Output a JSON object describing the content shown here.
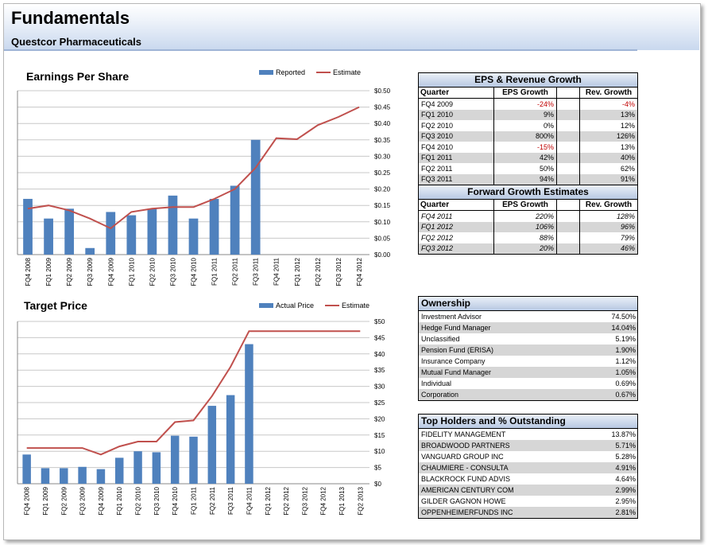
{
  "header": {
    "title": "Fundamentals",
    "company": "Questcor Pharmaceuticals"
  },
  "colors": {
    "bar": "#4f81bd",
    "line": "#c0504d",
    "negative": "#c00000"
  },
  "chart_data": [
    {
      "type": "bar",
      "title": "Earnings Per Share",
      "categories": [
        "FQ4 2008",
        "FQ1 2009",
        "FQ2 2009",
        "FQ3 2009",
        "FQ4 2009",
        "FQ1 2010",
        "FQ2 2010",
        "FQ3 2010",
        "FQ4 2010",
        "FQ1 2011",
        "FQ2 2011",
        "FQ3 2011",
        "FQ4 2011",
        "FQ1 2012",
        "FQ2 2012",
        "FQ3 2012",
        "FQ4 2012"
      ],
      "series": [
        {
          "name": "Reported",
          "kind": "bar",
          "values": [
            0.17,
            0.11,
            0.14,
            0.02,
            0.13,
            0.12,
            0.14,
            0.18,
            0.11,
            0.17,
            0.21,
            0.35,
            null,
            null,
            null,
            null,
            null
          ]
        },
        {
          "name": "Estimate",
          "kind": "line",
          "values": [
            0.14,
            0.15,
            0.135,
            0.11,
            0.08,
            0.13,
            0.14,
            0.145,
            0.145,
            0.17,
            0.2,
            0.265,
            0.355,
            0.352,
            0.395,
            0.42,
            0.45
          ]
        }
      ],
      "yticks": [
        "$0.00",
        "$0.05",
        "$0.10",
        "$0.15",
        "$0.20",
        "$0.25",
        "$0.30",
        "$0.35",
        "$0.40",
        "$0.45",
        "$0.50"
      ],
      "ylim": [
        0,
        0.5
      ],
      "y_axis_side": "right",
      "grid": true,
      "legend_placement": "top-right"
    },
    {
      "type": "bar",
      "title": "Target Price",
      "categories": [
        "FQ4 2008",
        "FQ1 2009",
        "FQ2 2009",
        "FQ3 2009",
        "FQ4 2009",
        "FQ1 2010",
        "FQ2 2010",
        "FQ3 2010",
        "FQ4 2010",
        "FQ1 2011",
        "FQ2 2011",
        "FQ3 2011",
        "FQ4 2011",
        "FQ1 2012",
        "FQ2 2012",
        "FQ3 2012",
        "FQ4 2012",
        "FQ1 2013",
        "FQ2 2013"
      ],
      "series": [
        {
          "name": "Actual Price",
          "kind": "bar",
          "values": [
            9,
            4.8,
            4.8,
            5.2,
            4.5,
            8,
            10,
            9.7,
            14.8,
            14.5,
            24,
            27.3,
            43,
            null,
            null,
            null,
            null,
            null,
            null
          ]
        },
        {
          "name": "Estimate",
          "kind": "line",
          "values": [
            11,
            11,
            11,
            11,
            9,
            11.5,
            13,
            13,
            19,
            19.5,
            27,
            36,
            47,
            47,
            47,
            47,
            47,
            47,
            47
          ]
        }
      ],
      "yticks": [
        "$0",
        "$5",
        "$10",
        "$15",
        "$20",
        "$25",
        "$30",
        "$35",
        "$40",
        "$45",
        "$50"
      ],
      "ylim": [
        0,
        50
      ],
      "y_axis_side": "right",
      "grid": true,
      "legend_placement": "top-right"
    }
  ],
  "eps_table": {
    "title": "EPS & Revenue Growth",
    "headers": [
      "Quarter",
      "EPS Growth",
      "Rev. Growth"
    ],
    "rows": [
      {
        "q": "FQ4 2009",
        "eps": "-24%",
        "rev": "-4%",
        "eps_neg": true,
        "rev_neg": true
      },
      {
        "q": "FQ1 2010",
        "eps": "9%",
        "rev": "13%"
      },
      {
        "q": "FQ2 2010",
        "eps": "0%",
        "rev": "12%"
      },
      {
        "q": "FQ3 2010",
        "eps": "800%",
        "rev": "126%"
      },
      {
        "q": "FQ4 2010",
        "eps": "-15%",
        "rev": "13%",
        "eps_neg": true
      },
      {
        "q": "FQ1 2011",
        "eps": "42%",
        "rev": "40%"
      },
      {
        "q": "FQ2 2011",
        "eps": "50%",
        "rev": "62%"
      },
      {
        "q": "FQ3 2011",
        "eps": "94%",
        "rev": "91%"
      }
    ]
  },
  "forward_table": {
    "title": "Forward Growth Estimates",
    "headers": [
      "Quarter",
      "EPS Growth",
      "Rev. Growth"
    ],
    "rows": [
      {
        "q": "FQ4 2011",
        "eps": "220%",
        "rev": "128%"
      },
      {
        "q": "FQ1 2012",
        "eps": "106%",
        "rev": "96%"
      },
      {
        "q": "FQ2 2012",
        "eps": "88%",
        "rev": "79%"
      },
      {
        "q": "FQ3 2012",
        "eps": "20%",
        "rev": "46%"
      }
    ]
  },
  "ownership": {
    "title": "Ownership",
    "rows": [
      {
        "name": "Investment Advisor",
        "pct": "74.50%"
      },
      {
        "name": "Hedge Fund Manager",
        "pct": "14.04%"
      },
      {
        "name": "Unclassified",
        "pct": "5.19%"
      },
      {
        "name": "Pension Fund (ERISA)",
        "pct": "1.90%"
      },
      {
        "name": "Insurance Company",
        "pct": "1.12%"
      },
      {
        "name": "Mutual Fund Manager",
        "pct": "1.05%"
      },
      {
        "name": "Individual",
        "pct": "0.69%"
      },
      {
        "name": "Corporation",
        "pct": "0.67%"
      }
    ]
  },
  "holders": {
    "title": "Top Holders and % Outstanding",
    "rows": [
      {
        "name": "FIDELITY MANAGEMENT",
        "pct": "13.87%"
      },
      {
        "name": "BROADWOOD PARTNERS",
        "pct": "5.71%"
      },
      {
        "name": "VANGUARD GROUP INC",
        "pct": "5.28%"
      },
      {
        "name": "CHAUMIERE - CONSULTA",
        "pct": "4.91%"
      },
      {
        "name": "BLACKROCK FUND ADVIS",
        "pct": "4.64%"
      },
      {
        "name": "AMERICAN CENTURY COM",
        "pct": "2.99%"
      },
      {
        "name": "GILDER GAGNON HOWE",
        "pct": "2.95%"
      },
      {
        "name": "OPPENHEIMERFUNDS INC",
        "pct": "2.81%"
      }
    ]
  }
}
